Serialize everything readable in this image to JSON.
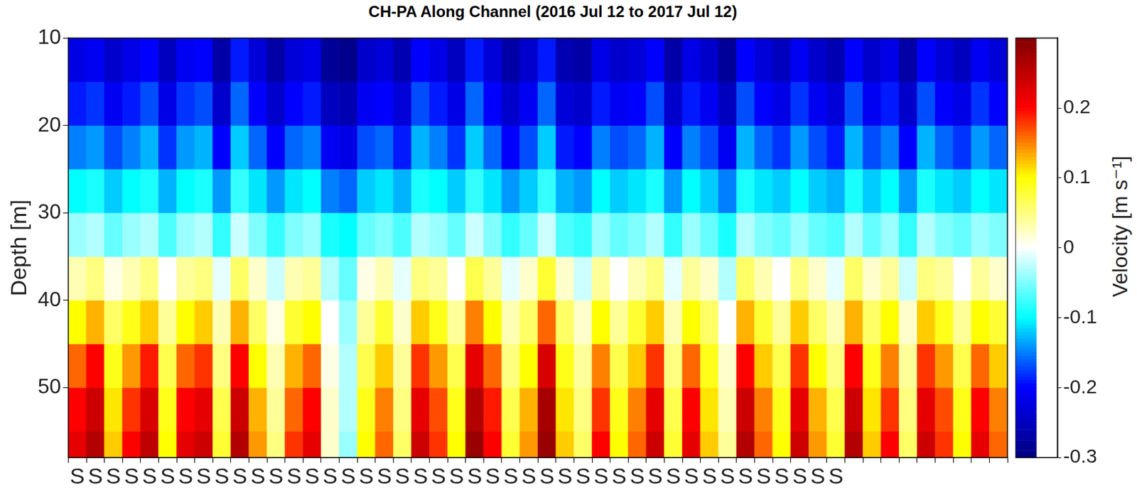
{
  "chart_data": {
    "type": "heatmap",
    "title": "CH-PA Along Channel (2016 Jul 12 to 2017 Jul 12)",
    "y_label": "Depth [m]",
    "grid": false,
    "categories": [
      "S",
      "S",
      "S",
      "S",
      "S",
      "S",
      "S",
      "S",
      "S",
      "S",
      "S",
      "S",
      "S",
      "S",
      "S",
      "S",
      "S",
      "S",
      "S",
      "S",
      "S",
      "S",
      "S",
      "S",
      "S",
      "S",
      "S",
      "S",
      "S",
      "S",
      "S",
      "S",
      "S",
      "S",
      "S",
      "S",
      "S",
      "S",
      "S",
      "S",
      "S",
      "S",
      "S",
      null,
      null,
      null,
      null,
      null,
      null,
      null,
      null,
      null
    ],
    "ylim": [
      10,
      58
    ],
    "yticks": [
      10,
      20,
      30,
      40,
      50
    ],
    "depth_edges": [
      10,
      15,
      20,
      25,
      30,
      35,
      40,
      45,
      50,
      55,
      58
    ],
    "cells": [
      [
        -0.22,
        -0.21,
        -0.24,
        -0.22,
        -0.2,
        -0.25,
        -0.21,
        -0.2,
        -0.27,
        -0.19,
        -0.23,
        -0.27,
        -0.23,
        -0.22,
        -0.28,
        -0.29,
        -0.24,
        -0.23,
        -0.26,
        -0.2,
        -0.22,
        -0.25,
        -0.19,
        -0.23,
        -0.27,
        -0.24,
        -0.19,
        -0.26,
        -0.27,
        -0.22,
        -0.24,
        -0.23,
        -0.2,
        -0.27,
        -0.22,
        -0.24,
        -0.28,
        -0.2,
        -0.23,
        -0.25,
        -0.21,
        -0.24,
        -0.26,
        -0.2,
        -0.24,
        -0.22,
        -0.27,
        -0.2,
        -0.23,
        -0.25,
        -0.21,
        -0.23
      ],
      [
        -0.19,
        -0.18,
        -0.21,
        -0.19,
        -0.17,
        -0.22,
        -0.18,
        -0.17,
        -0.24,
        -0.16,
        -0.2,
        -0.24,
        -0.2,
        -0.19,
        -0.25,
        -0.26,
        -0.21,
        -0.2,
        -0.23,
        -0.17,
        -0.19,
        -0.22,
        -0.16,
        -0.2,
        -0.24,
        -0.21,
        -0.16,
        -0.23,
        -0.24,
        -0.19,
        -0.21,
        -0.2,
        -0.17,
        -0.24,
        -0.19,
        -0.21,
        -0.25,
        -0.17,
        -0.2,
        -0.22,
        -0.18,
        -0.21,
        -0.23,
        -0.17,
        -0.21,
        -0.19,
        -0.24,
        -0.17,
        -0.2,
        -0.22,
        -0.18,
        -0.2
      ],
      [
        -0.15,
        -0.14,
        -0.17,
        -0.15,
        -0.13,
        -0.18,
        -0.14,
        -0.13,
        -0.2,
        -0.12,
        -0.16,
        -0.2,
        -0.16,
        -0.15,
        -0.21,
        -0.22,
        -0.17,
        -0.16,
        -0.19,
        -0.13,
        -0.15,
        -0.18,
        -0.12,
        -0.16,
        -0.2,
        -0.17,
        -0.12,
        -0.19,
        -0.2,
        -0.15,
        -0.17,
        -0.16,
        -0.13,
        -0.2,
        -0.15,
        -0.17,
        -0.21,
        -0.13,
        -0.16,
        -0.18,
        -0.14,
        -0.17,
        -0.19,
        -0.13,
        -0.17,
        -0.15,
        -0.2,
        -0.13,
        -0.16,
        -0.18,
        -0.14,
        -0.16
      ],
      [
        -0.1,
        -0.09,
        -0.12,
        -0.1,
        -0.09,
        -0.13,
        -0.1,
        -0.09,
        -0.14,
        -0.08,
        -0.11,
        -0.14,
        -0.11,
        -0.1,
        -0.15,
        -0.16,
        -0.12,
        -0.11,
        -0.13,
        -0.09,
        -0.1,
        -0.12,
        -0.08,
        -0.11,
        -0.14,
        -0.12,
        -0.08,
        -0.13,
        -0.14,
        -0.1,
        -0.12,
        -0.11,
        -0.09,
        -0.14,
        -0.1,
        -0.12,
        -0.15,
        -0.09,
        -0.11,
        -0.12,
        -0.1,
        -0.12,
        -0.13,
        -0.09,
        -0.12,
        -0.1,
        -0.14,
        -0.09,
        -0.11,
        -0.12,
        -0.1,
        -0.11
      ],
      [
        -0.04,
        -0.03,
        -0.06,
        -0.04,
        -0.03,
        -0.07,
        -0.04,
        -0.03,
        -0.08,
        -0.02,
        -0.05,
        -0.08,
        -0.05,
        -0.04,
        -0.09,
        -0.1,
        -0.06,
        -0.05,
        -0.07,
        -0.03,
        -0.04,
        -0.06,
        -0.02,
        -0.05,
        -0.08,
        -0.06,
        -0.02,
        -0.07,
        -0.08,
        -0.04,
        -0.06,
        -0.05,
        -0.03,
        -0.08,
        -0.04,
        -0.06,
        -0.09,
        -0.03,
        -0.05,
        -0.06,
        -0.04,
        -0.06,
        -0.07,
        -0.03,
        -0.06,
        -0.04,
        -0.08,
        -0.03,
        -0.05,
        -0.06,
        -0.04,
        -0.05
      ],
      [
        0.03,
        0.05,
        0.01,
        0.03,
        0.05,
        0.0,
        0.04,
        0.05,
        -0.01,
        0.06,
        0.02,
        -0.02,
        0.03,
        0.04,
        -0.03,
        -0.06,
        0.01,
        0.03,
        -0.01,
        0.05,
        0.04,
        0.0,
        0.07,
        0.04,
        -0.01,
        0.02,
        0.08,
        0.02,
        -0.02,
        0.04,
        0.0,
        0.03,
        0.05,
        -0.01,
        0.04,
        0.02,
        -0.03,
        0.06,
        0.03,
        0.0,
        0.05,
        0.02,
        -0.01,
        0.06,
        0.02,
        0.04,
        -0.02,
        0.05,
        0.04,
        0.0,
        0.04,
        0.02
      ],
      [
        0.1,
        0.13,
        0.06,
        0.09,
        0.12,
        0.04,
        0.1,
        0.12,
        0.03,
        0.13,
        0.06,
        0.01,
        0.08,
        0.1,
        0.0,
        -0.04,
        0.04,
        0.08,
        0.02,
        0.12,
        0.09,
        0.04,
        0.15,
        0.1,
        0.03,
        0.06,
        0.16,
        0.06,
        0.02,
        0.1,
        0.04,
        0.08,
        0.12,
        0.03,
        0.1,
        0.06,
        0.0,
        0.13,
        0.08,
        0.04,
        0.12,
        0.06,
        0.03,
        0.13,
        0.06,
        0.1,
        0.02,
        0.12,
        0.09,
        0.04,
        0.1,
        0.08
      ],
      [
        0.16,
        0.2,
        0.09,
        0.14,
        0.19,
        0.07,
        0.16,
        0.18,
        0.05,
        0.2,
        0.1,
        0.03,
        0.13,
        0.16,
        0.01,
        -0.03,
        0.07,
        0.12,
        0.04,
        0.18,
        0.14,
        0.07,
        0.22,
        0.16,
        0.05,
        0.1,
        0.23,
        0.09,
        0.04,
        0.15,
        0.07,
        0.12,
        0.18,
        0.05,
        0.16,
        0.09,
        0.02,
        0.2,
        0.12,
        0.07,
        0.18,
        0.1,
        0.05,
        0.2,
        0.09,
        0.15,
        0.04,
        0.18,
        0.14,
        0.07,
        0.16,
        0.12
      ],
      [
        0.2,
        0.24,
        0.11,
        0.18,
        0.23,
        0.09,
        0.2,
        0.22,
        0.07,
        0.24,
        0.13,
        0.04,
        0.16,
        0.2,
        0.02,
        -0.03,
        0.09,
        0.15,
        0.05,
        0.22,
        0.17,
        0.09,
        0.26,
        0.19,
        0.07,
        0.13,
        0.27,
        0.11,
        0.05,
        0.18,
        0.09,
        0.15,
        0.22,
        0.07,
        0.2,
        0.11,
        0.03,
        0.24,
        0.15,
        0.09,
        0.22,
        0.13,
        0.07,
        0.24,
        0.11,
        0.18,
        0.05,
        0.22,
        0.17,
        0.09,
        0.2,
        0.15
      ],
      [
        0.22,
        0.26,
        0.12,
        0.2,
        0.25,
        0.1,
        0.22,
        0.24,
        0.08,
        0.26,
        0.14,
        0.05,
        0.18,
        0.22,
        0.02,
        -0.04,
        0.1,
        0.16,
        0.06,
        0.24,
        0.18,
        0.1,
        0.28,
        0.2,
        0.08,
        0.14,
        0.28,
        0.12,
        0.06,
        0.2,
        0.1,
        0.16,
        0.24,
        0.08,
        0.22,
        0.12,
        0.04,
        0.26,
        0.16,
        0.1,
        0.24,
        0.14,
        0.08,
        0.26,
        0.12,
        0.2,
        0.06,
        0.24,
        0.18,
        0.1,
        0.22,
        0.16
      ]
    ],
    "colorbar": {
      "label": "Velocity [m s⁻¹]",
      "range": [
        -0.3,
        0.3
      ],
      "ticks": [
        -0.3,
        -0.2,
        -0.1,
        0,
        0.1,
        0.2
      ]
    }
  }
}
